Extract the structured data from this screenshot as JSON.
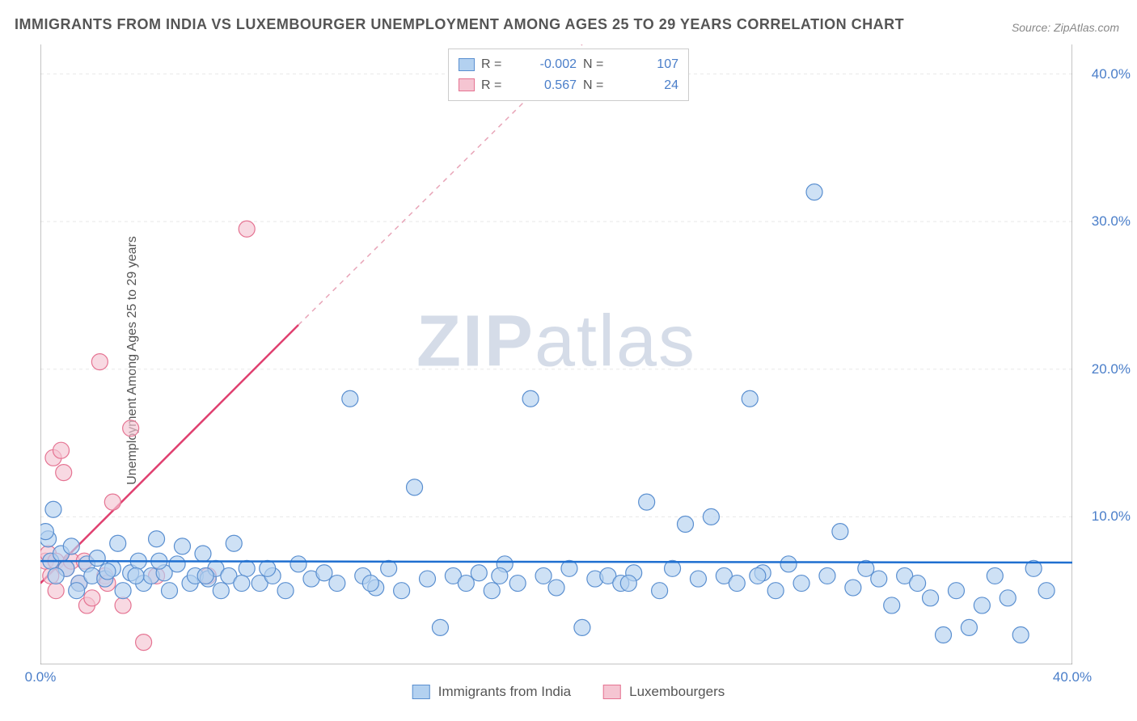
{
  "title": "IMMIGRANTS FROM INDIA VS LUXEMBOURGER UNEMPLOYMENT AMONG AGES 25 TO 29 YEARS CORRELATION CHART",
  "source_label": "Source: ZipAtlas.com",
  "ylabel": "Unemployment Among Ages 25 to 29 years",
  "watermark_a": "ZIP",
  "watermark_b": "atlas",
  "chart": {
    "type": "scatter",
    "xlim": [
      0,
      40
    ],
    "ylim": [
      0,
      42
    ],
    "xtick_labels": [
      "0.0%",
      "40.0%"
    ],
    "xtick_positions": [
      0,
      40
    ],
    "ytick_labels": [
      "10.0%",
      "20.0%",
      "30.0%",
      "40.0%"
    ],
    "ytick_positions": [
      10,
      20,
      30,
      40
    ],
    "grid_color": "#e8e8e8",
    "axis_color": "#888888",
    "series_blue": {
      "label": "Immigrants from India",
      "fill": "#b3d1f0",
      "stroke": "#5a8fd0",
      "R": "-0.002",
      "N": "107",
      "trend": {
        "x1": 0,
        "y1": 7.0,
        "x2": 40,
        "y2": 6.9,
        "color": "#1f6fd0",
        "width": 2.5
      },
      "points": [
        [
          0.3,
          8.5
        ],
        [
          0.5,
          10.5
        ],
        [
          0.4,
          7.0
        ],
        [
          0.8,
          7.5
        ],
        [
          1.0,
          6.5
        ],
        [
          1.2,
          8.0
        ],
        [
          1.5,
          5.5
        ],
        [
          1.8,
          6.8
        ],
        [
          2.0,
          6.0
        ],
        [
          2.2,
          7.2
        ],
        [
          2.5,
          5.8
        ],
        [
          2.8,
          6.5
        ],
        [
          3.0,
          8.2
        ],
        [
          3.2,
          5.0
        ],
        [
          3.5,
          6.2
        ],
        [
          3.8,
          7.0
        ],
        [
          4.0,
          5.5
        ],
        [
          4.3,
          6.0
        ],
        [
          4.5,
          8.5
        ],
        [
          4.8,
          6.2
        ],
        [
          5.0,
          5.0
        ],
        [
          5.3,
          6.8
        ],
        [
          5.5,
          8.0
        ],
        [
          5.8,
          5.5
        ],
        [
          6.0,
          6.0
        ],
        [
          6.3,
          7.5
        ],
        [
          6.5,
          5.8
        ],
        [
          6.8,
          6.5
        ],
        [
          7.0,
          5.0
        ],
        [
          7.3,
          6.0
        ],
        [
          7.5,
          8.2
        ],
        [
          8.0,
          6.5
        ],
        [
          8.5,
          5.5
        ],
        [
          9.0,
          6.0
        ],
        [
          9.5,
          5.0
        ],
        [
          10.0,
          6.8
        ],
        [
          10.5,
          5.8
        ],
        [
          11.0,
          6.2
        ],
        [
          11.5,
          5.5
        ],
        [
          12.0,
          18.0
        ],
        [
          12.5,
          6.0
        ],
        [
          13.0,
          5.2
        ],
        [
          13.5,
          6.5
        ],
        [
          14.0,
          5.0
        ],
        [
          14.5,
          12.0
        ],
        [
          15.0,
          5.8
        ],
        [
          15.5,
          2.5
        ],
        [
          16.0,
          6.0
        ],
        [
          16.5,
          5.5
        ],
        [
          17.0,
          6.2
        ],
        [
          17.5,
          5.0
        ],
        [
          18.0,
          6.8
        ],
        [
          18.5,
          5.5
        ],
        [
          19.0,
          18.0
        ],
        [
          19.5,
          6.0
        ],
        [
          20.0,
          5.2
        ],
        [
          20.5,
          6.5
        ],
        [
          21.0,
          2.5
        ],
        [
          21.5,
          5.8
        ],
        [
          22.0,
          6.0
        ],
        [
          22.5,
          5.5
        ],
        [
          23.0,
          6.2
        ],
        [
          23.5,
          11.0
        ],
        [
          24.0,
          5.0
        ],
        [
          24.5,
          6.5
        ],
        [
          25.0,
          9.5
        ],
        [
          25.5,
          5.8
        ],
        [
          26.0,
          10.0
        ],
        [
          26.5,
          6.0
        ],
        [
          27.0,
          5.5
        ],
        [
          27.5,
          18.0
        ],
        [
          28.0,
          6.2
        ],
        [
          28.5,
          5.0
        ],
        [
          29.0,
          6.8
        ],
        [
          29.5,
          5.5
        ],
        [
          30.0,
          32.0
        ],
        [
          30.5,
          6.0
        ],
        [
          31.0,
          9.0
        ],
        [
          31.5,
          5.2
        ],
        [
          32.0,
          6.5
        ],
        [
          32.5,
          5.8
        ],
        [
          33.0,
          4.0
        ],
        [
          33.5,
          6.0
        ],
        [
          34.0,
          5.5
        ],
        [
          34.5,
          4.5
        ],
        [
          35.0,
          2.0
        ],
        [
          35.5,
          5.0
        ],
        [
          36.0,
          2.5
        ],
        [
          36.5,
          4.0
        ],
        [
          37.0,
          6.0
        ],
        [
          37.5,
          4.5
        ],
        [
          38.0,
          2.0
        ],
        [
          38.5,
          6.5
        ],
        [
          39.0,
          5.0
        ],
        [
          0.2,
          9.0
        ],
        [
          0.6,
          6.0
        ],
        [
          1.4,
          5.0
        ],
        [
          2.6,
          6.3
        ],
        [
          3.7,
          6.0
        ],
        [
          4.6,
          7.0
        ],
        [
          6.4,
          6.0
        ],
        [
          7.8,
          5.5
        ],
        [
          8.8,
          6.5
        ],
        [
          12.8,
          5.5
        ],
        [
          17.8,
          6.0
        ],
        [
          22.8,
          5.5
        ],
        [
          27.8,
          6.0
        ]
      ]
    },
    "series_pink": {
      "label": "Luxembourgers",
      "fill": "#f5c5d2",
      "stroke": "#e57392",
      "R": "0.567",
      "N": "24",
      "trend_solid": {
        "x1": 0,
        "y1": 5.5,
        "x2": 10,
        "y2": 23.0,
        "color": "#e04070",
        "width": 2.5
      },
      "trend_dash": {
        "x1": 10,
        "y1": 23.0,
        "x2": 21,
        "y2": 42.0,
        "color": "#e8a5b8",
        "width": 1.5
      },
      "points": [
        [
          0.2,
          7.0
        ],
        [
          0.3,
          7.5
        ],
        [
          0.4,
          6.0
        ],
        [
          0.5,
          14.0
        ],
        [
          0.6,
          7.0
        ],
        [
          0.8,
          14.5
        ],
        [
          0.9,
          13.0
        ],
        [
          1.0,
          6.5
        ],
        [
          1.2,
          7.0
        ],
        [
          1.5,
          5.5
        ],
        [
          1.8,
          4.0
        ],
        [
          2.0,
          4.5
        ],
        [
          2.3,
          20.5
        ],
        [
          2.5,
          6.0
        ],
        [
          2.8,
          11.0
        ],
        [
          3.2,
          4.0
        ],
        [
          3.5,
          16.0
        ],
        [
          4.0,
          1.5
        ],
        [
          4.5,
          6.0
        ],
        [
          6.5,
          6.0
        ],
        [
          8.0,
          29.5
        ],
        [
          0.6,
          5.0
        ],
        [
          1.7,
          7.0
        ],
        [
          2.6,
          5.5
        ]
      ]
    }
  },
  "colors": {
    "blue_fill": "#b3d1f0",
    "blue_stroke": "#5a8fd0",
    "pink_fill": "#f5c5d2",
    "pink_stroke": "#e57392",
    "value_color": "#4a7ec9"
  },
  "legend_top": {
    "r_label": "R =",
    "n_label": "N ="
  }
}
